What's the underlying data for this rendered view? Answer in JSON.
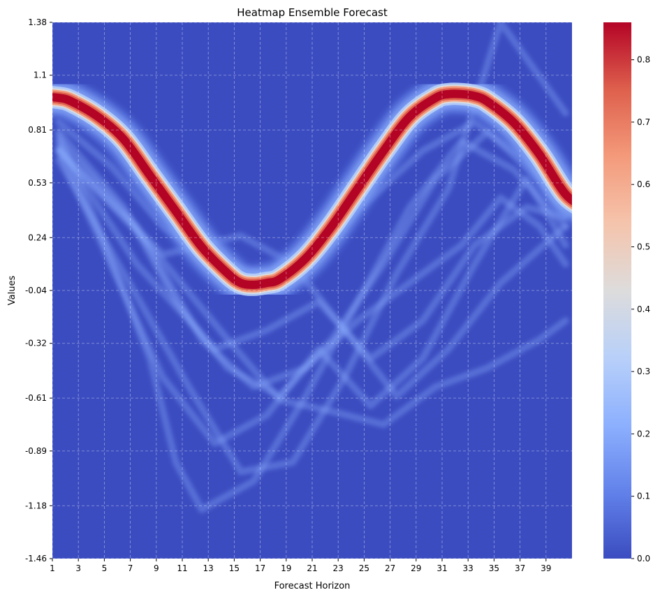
{
  "chart_data": {
    "type": "heatmap",
    "title": "Heatmap Ensemble Forecast",
    "xlabel": "Forecast Horizon",
    "ylabel": "Values",
    "x_range": [
      1,
      40
    ],
    "x_ticks": [
      "1",
      "3",
      "5",
      "7",
      "9",
      "11",
      "13",
      "15",
      "17",
      "19",
      "21",
      "23",
      "25",
      "27",
      "29",
      "31",
      "33",
      "35",
      "37",
      "39"
    ],
    "ylim": [
      -1.46,
      1.38
    ],
    "y_ticks": [
      "1.38",
      "1.1",
      "0.81",
      "0.53",
      "0.24",
      "-0.04",
      "-0.32",
      "-0.61",
      "-0.89",
      "-1.18",
      "-1.46"
    ],
    "colorbar": {
      "range": [
        0.0,
        0.86
      ],
      "ticks": [
        "0.0",
        "0.1",
        "0.2",
        "0.3",
        "0.4",
        "0.5",
        "0.6",
        "0.7",
        "0.8"
      ],
      "colormap": [
        "#3b4cc0",
        "#6282ea",
        "#8db0fe",
        "#b8d0f9",
        "#dddcdc",
        "#f5c4ac",
        "#f49a7b",
        "#de604d",
        "#b40426"
      ]
    },
    "grid": true,
    "colors": {
      "background": "#3b4cc0",
      "peak": "#b40426"
    },
    "main_ridge": {
      "description_points_x": [
        1,
        2,
        4,
        6,
        8,
        10,
        12,
        14,
        15,
        16,
        17,
        18,
        20,
        22,
        24,
        26,
        28,
        30,
        31,
        32,
        33,
        34,
        36,
        38,
        40
      ],
      "description_points_y": [
        0.98,
        0.96,
        0.88,
        0.76,
        0.57,
        0.38,
        0.19,
        0.05,
        0.0,
        -0.01,
        0.0,
        0.02,
        0.13,
        0.3,
        0.5,
        0.7,
        0.88,
        0.98,
        1.0,
        1.0,
        0.99,
        0.96,
        0.85,
        0.68,
        0.47
      ]
    },
    "ensemble_members": [
      {
        "x": [
          1,
          5,
          9,
          13,
          17,
          21,
          25,
          29,
          33,
          37,
          40
        ],
        "y": [
          0.85,
          0.62,
          0.3,
          0.1,
          0.05,
          0.22,
          0.45,
          0.7,
          0.85,
          0.65,
          0.45
        ]
      },
      {
        "x": [
          1,
          6,
          10,
          14,
          18,
          22,
          26,
          30,
          34,
          38,
          40
        ],
        "y": [
          0.8,
          0.4,
          -0.1,
          -0.45,
          -0.6,
          -0.3,
          0.1,
          0.55,
          0.8,
          0.55,
          0.35
        ]
      },
      {
        "x": [
          1,
          4,
          8,
          10,
          12,
          16,
          20,
          24,
          28,
          32,
          36,
          40
        ],
        "y": [
          0.78,
          0.3,
          -0.4,
          -0.95,
          -1.2,
          -1.05,
          -0.6,
          -0.1,
          0.4,
          0.75,
          0.6,
          0.3
        ]
      },
      {
        "x": [
          1,
          5,
          9,
          13,
          17,
          21,
          25,
          29,
          33,
          37,
          40
        ],
        "y": [
          0.7,
          0.1,
          -0.5,
          -0.85,
          -0.7,
          -0.35,
          -0.65,
          -0.4,
          0.1,
          0.55,
          0.2
        ]
      },
      {
        "x": [
          1,
          7,
          12,
          16,
          20,
          24,
          28,
          32,
          35,
          38,
          40
        ],
        "y": [
          0.75,
          0.3,
          -0.3,
          -0.55,
          -0.45,
          -0.2,
          0.0,
          0.2,
          0.45,
          0.3,
          0.1
        ]
      },
      {
        "x": [
          1,
          6,
          11,
          15,
          19,
          23,
          27,
          31,
          35,
          40
        ],
        "y": [
          0.65,
          0.05,
          -0.55,
          -1.0,
          -0.95,
          -0.5,
          0.05,
          0.5,
          1.38,
          0.9
        ]
      },
      {
        "x": [
          1,
          8,
          14,
          18,
          22,
          26,
          30,
          34,
          38,
          40
        ],
        "y": [
          0.7,
          0.2,
          -0.3,
          -0.62,
          -0.68,
          -0.75,
          -0.55,
          -0.45,
          -0.3,
          -0.2
        ]
      },
      {
        "x": [
          1,
          7,
          13,
          17,
          21,
          25,
          29,
          33,
          37,
          40
        ],
        "y": [
          0.72,
          0.1,
          -0.35,
          -0.25,
          -0.1,
          -0.4,
          -0.2,
          0.2,
          0.4,
          0.35
        ]
      },
      {
        "x": [
          1,
          9,
          15,
          19,
          23,
          27,
          31,
          35,
          40
        ],
        "y": [
          0.7,
          0.15,
          0.25,
          0.1,
          -0.25,
          -0.6,
          -0.35,
          0.0,
          0.3
        ]
      }
    ]
  }
}
